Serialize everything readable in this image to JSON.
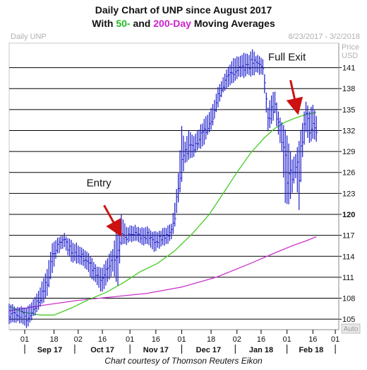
{
  "title_line1": "Daily Chart of UNP since August 2017",
  "title_line2": {
    "prefix": "With ",
    "fifty": "50-",
    "middle": " and ",
    "two_hundred": "200-Day",
    "suffix": " Moving Averages"
  },
  "footer": "Chart courtesy of Thomson Reuters Eikon",
  "colors": {
    "price_bars": "#1a1acc",
    "ma50": "#44cc22",
    "ma200": "#cc33cc",
    "arrow": "#cc1111",
    "grid": "#000000"
  },
  "chart_data": {
    "type": "line",
    "symbol_label": "Daily UNP",
    "date_range": "8/23/2017 - 3/2/2018",
    "y_axis_unit": [
      "Price",
      "USD"
    ],
    "auto_label": "Auto",
    "ylim": [
      103.5,
      144.5
    ],
    "y_ticks": [
      105,
      108,
      111,
      114,
      117,
      120,
      123,
      126,
      129,
      132,
      135,
      138,
      141
    ],
    "y_tick_bold": 120,
    "x_ticks": [
      {
        "day": 9,
        "label": "01"
      },
      {
        "day": 26,
        "label": "18"
      },
      {
        "day": 40,
        "label": "02"
      },
      {
        "day": 54,
        "label": "16"
      },
      {
        "day": 70,
        "label": "01"
      },
      {
        "day": 85,
        "label": "16"
      },
      {
        "day": 100,
        "label": "01"
      },
      {
        "day": 117,
        "label": "18"
      },
      {
        "day": 132,
        "label": "02"
      },
      {
        "day": 146,
        "label": "16"
      },
      {
        "day": 161,
        "label": "01"
      },
      {
        "day": 176,
        "label": "16"
      },
      {
        "day": 189,
        "label": "01"
      }
    ],
    "x_days_range": [
      0,
      191
    ],
    "months": [
      {
        "label": "Sep 17",
        "start": 9,
        "end": 38
      },
      {
        "label": "Oct 17",
        "start": 38,
        "end": 70
      },
      {
        "label": "Nov 17",
        "start": 70,
        "end": 100
      },
      {
        "label": "Dec 17",
        "start": 100,
        "end": 131
      },
      {
        "label": "Jan 18",
        "start": 131,
        "end": 161
      },
      {
        "label": "Feb 18",
        "start": 161,
        "end": 189
      }
    ],
    "price_points": [
      [
        0,
        106
      ],
      [
        5,
        105.5
      ],
      [
        10,
        105.2
      ],
      [
        14,
        106.5
      ],
      [
        18,
        108.2
      ],
      [
        22,
        110.5
      ],
      [
        25,
        113.5
      ],
      [
        28,
        115.5
      ],
      [
        32,
        116.5
      ],
      [
        36,
        114.8
      ],
      [
        40,
        114.5
      ],
      [
        44,
        114.0
      ],
      [
        48,
        112.5
      ],
      [
        51,
        111.5
      ],
      [
        54,
        110.5
      ],
      [
        57,
        112.0
      ],
      [
        60,
        113.5
      ],
      [
        63,
        116.5
      ],
      [
        65,
        117.5
      ],
      [
        68,
        117.0
      ],
      [
        72,
        117.3
      ],
      [
        76,
        117.0
      ],
      [
        80,
        116.8
      ],
      [
        84,
        116.0
      ],
      [
        88,
        116.5
      ],
      [
        91,
        117.0
      ],
      [
        94,
        117.5
      ],
      [
        96,
        120.5
      ],
      [
        98,
        124.5
      ],
      [
        100,
        127.5
      ],
      [
        102,
        129.0
      ],
      [
        104,
        129.5
      ],
      [
        107,
        130.0
      ],
      [
        110,
        131.0
      ],
      [
        112,
        131.5
      ],
      [
        115,
        133.0
      ],
      [
        118,
        134.5
      ],
      [
        121,
        137.0
      ],
      [
        124,
        138.5
      ],
      [
        127,
        139.5
      ],
      [
        130,
        140.5
      ],
      [
        133,
        141.0
      ],
      [
        136,
        141.2
      ],
      [
        139,
        141.5
      ],
      [
        141,
        141.8
      ],
      [
        143,
        141.5
      ],
      [
        145,
        141.6
      ],
      [
        147,
        141.2
      ],
      [
        150,
        133.5
      ],
      [
        152,
        134.5
      ],
      [
        154,
        136.0
      ],
      [
        156,
        133.0
      ],
      [
        158,
        131.0
      ],
      [
        160,
        127.5
      ],
      [
        162,
        124.5
      ],
      [
        164,
        125.5
      ],
      [
        166,
        127.5
      ],
      [
        168,
        129.0
      ],
      [
        170,
        131.0
      ],
      [
        172,
        133.5
      ],
      [
        174,
        132.0
      ],
      [
        176,
        131.5
      ],
      [
        178,
        132.5
      ]
    ],
    "bar_ranges": [
      [
        0,
        104.5,
        107
      ],
      [
        5,
        104.8,
        106.5
      ],
      [
        10,
        104.0,
        106.5
      ],
      [
        14,
        105.5,
        107.5
      ],
      [
        18,
        107.0,
        109.5
      ],
      [
        22,
        108.5,
        112.0
      ],
      [
        25,
        112.0,
        115.5
      ],
      [
        28,
        114.5,
        116.5
      ],
      [
        32,
        115.5,
        117.0
      ],
      [
        36,
        113.5,
        116.0
      ],
      [
        40,
        113.2,
        115.5
      ],
      [
        44,
        112.5,
        114.8
      ],
      [
        48,
        111.0,
        113.5
      ],
      [
        51,
        110.0,
        112.5
      ],
      [
        54,
        109.0,
        112.0
      ],
      [
        57,
        110.5,
        113.5
      ],
      [
        60,
        112.0,
        115.0
      ],
      [
        63,
        110.0,
        118.0
      ],
      [
        65,
        116.0,
        119.8
      ],
      [
        68,
        116.0,
        118.0
      ],
      [
        72,
        116.5,
        118.2
      ],
      [
        76,
        116.0,
        118.0
      ],
      [
        80,
        115.8,
        118.0
      ],
      [
        84,
        115.0,
        117.2
      ],
      [
        88,
        115.5,
        117.5
      ],
      [
        91,
        116.0,
        118.0
      ],
      [
        94,
        116.5,
        118.5
      ],
      [
        96,
        118.5,
        121.5
      ],
      [
        98,
        122.0,
        125.5
      ],
      [
        100,
        125.0,
        132.5
      ],
      [
        102,
        127.5,
        130.0
      ],
      [
        104,
        128.0,
        132.0
      ],
      [
        107,
        128.5,
        131.0
      ],
      [
        110,
        129.5,
        132.0
      ],
      [
        112,
        129.8,
        133.0
      ],
      [
        115,
        131.5,
        134.0
      ],
      [
        118,
        133.0,
        135.5
      ],
      [
        121,
        135.5,
        138.0
      ],
      [
        124,
        137.5,
        139.5
      ],
      [
        127,
        138.5,
        141.0
      ],
      [
        130,
        139.0,
        142.0
      ],
      [
        133,
        140.0,
        142.5
      ],
      [
        136,
        139.8,
        143.0
      ],
      [
        139,
        140.2,
        142.5
      ],
      [
        141,
        140.0,
        143.5
      ],
      [
        143,
        140.5,
        142.5
      ],
      [
        145,
        140.2,
        142.5
      ],
      [
        147,
        140.0,
        142.0
      ],
      [
        150,
        132.0,
        135.0
      ],
      [
        152,
        133.0,
        137.0
      ],
      [
        154,
        134.5,
        137.5
      ],
      [
        156,
        131.5,
        134.5
      ],
      [
        158,
        129.0,
        133.0
      ],
      [
        160,
        122.0,
        132.0
      ],
      [
        162,
        121.5,
        130.0
      ],
      [
        164,
        123.5,
        127.5
      ],
      [
        166,
        125.5,
        128.5
      ],
      [
        168,
        121.0,
        130.5
      ],
      [
        170,
        128.5,
        133.0
      ],
      [
        172,
        132.0,
        136.0
      ],
      [
        174,
        130.5,
        134.5
      ],
      [
        176,
        131.0,
        135.5
      ],
      [
        178,
        130.5,
        134.0
      ]
    ],
    "ma50_points": [
      [
        0,
        106.8
      ],
      [
        8,
        106.0
      ],
      [
        18,
        105.6
      ],
      [
        26,
        105.6
      ],
      [
        36,
        106.6
      ],
      [
        46,
        107.8
      ],
      [
        56,
        108.8
      ],
      [
        66,
        110.2
      ],
      [
        76,
        111.8
      ],
      [
        86,
        113.0
      ],
      [
        96,
        114.8
      ],
      [
        106,
        117.2
      ],
      [
        116,
        120.0
      ],
      [
        124,
        123.0
      ],
      [
        132,
        126.0
      ],
      [
        140,
        128.8
      ],
      [
        148,
        131.0
      ],
      [
        154,
        132.3
      ],
      [
        160,
        133.2
      ],
      [
        166,
        133.8
      ],
      [
        172,
        134.3
      ],
      [
        178,
        134.6
      ]
    ],
    "ma200_points": [
      [
        0,
        106.2
      ],
      [
        20,
        107.0
      ],
      [
        40,
        107.7
      ],
      [
        60,
        108.2
      ],
      [
        80,
        108.7
      ],
      [
        100,
        109.6
      ],
      [
        120,
        111.0
      ],
      [
        140,
        113.0
      ],
      [
        155,
        114.6
      ],
      [
        165,
        115.6
      ],
      [
        172,
        116.2
      ],
      [
        178,
        116.8
      ]
    ],
    "annotations": [
      {
        "label": "Entry",
        "label_day": 52,
        "label_price": 124.0,
        "arrow_from": [
          55,
          121.3
        ],
        "arrow_to": [
          64,
          117.3
        ]
      },
      {
        "label": "Full Exit",
        "label_day": 161,
        "label_price": 142.0,
        "arrow_from": [
          163,
          139.2
        ],
        "arrow_to": [
          167,
          134.8
        ]
      }
    ]
  }
}
